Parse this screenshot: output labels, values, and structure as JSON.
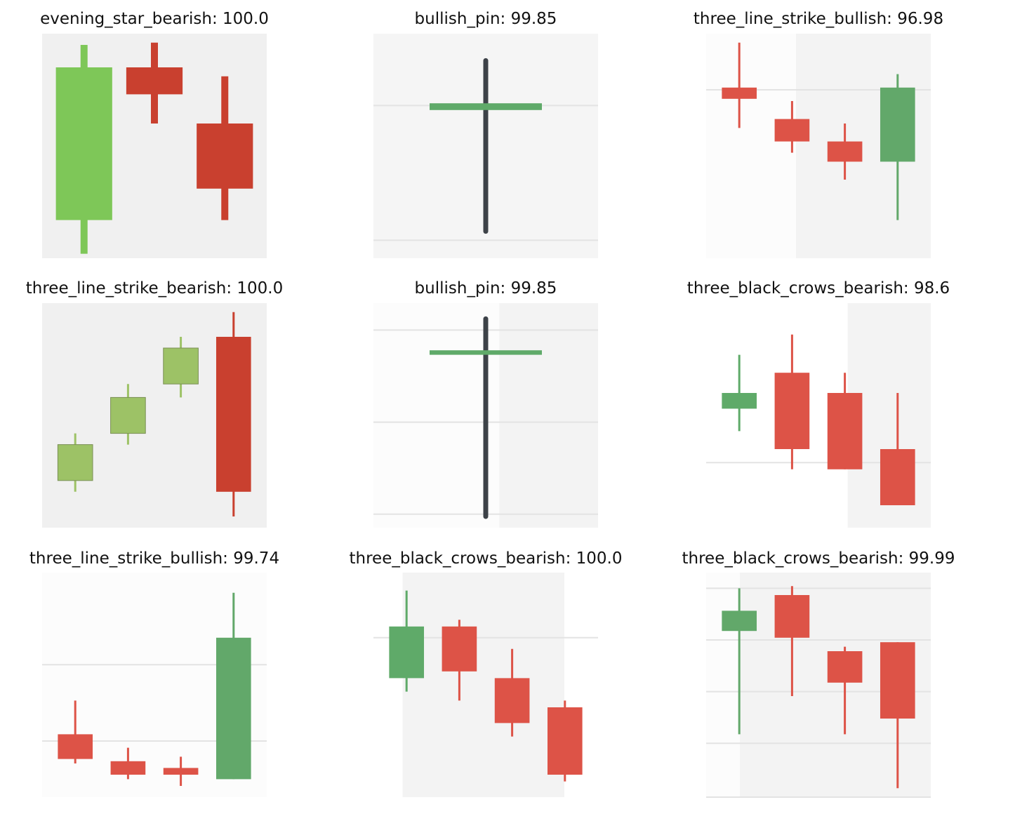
{
  "chart_data": [
    {
      "type": "candlestick",
      "title": "evening_star_bearish: 100.0",
      "background": [
        "#f0f0f0"
      ],
      "gridlines": [],
      "candles": [
        {
          "o": 0.85,
          "h": 0.95,
          "l": 0.02,
          "c": 0.17,
          "color": "#7ec758"
        },
        {
          "o": 0.73,
          "h": 0.96,
          "l": 0.6,
          "c": 0.85,
          "color": "#c9402f"
        },
        {
          "o": 0.6,
          "h": 0.81,
          "l": 0.17,
          "c": 0.31,
          "color": "#c9402f"
        }
      ]
    },
    {
      "type": "candlestick",
      "title": "bullish_pin: 99.85",
      "background": [
        "#f5f5f5"
      ],
      "gridlines": [
        0.68,
        0.08
      ],
      "candles": [
        {
          "o": 0.66,
          "h": 0.88,
          "l": 0.12,
          "c": 0.69,
          "color": "#5faa69",
          "wick": "#3d4248"
        }
      ]
    },
    {
      "type": "candlestick",
      "title": "three_line_strike_bullish: 96.98",
      "background": [
        "#fcfcfc",
        "#f3f3f3"
      ],
      "gridlines": [
        0.75
      ],
      "candles": [
        {
          "o": 0.76,
          "h": 0.96,
          "l": 0.58,
          "c": 0.71,
          "color": "#dd5347"
        },
        {
          "o": 0.62,
          "h": 0.7,
          "l": 0.47,
          "c": 0.52,
          "color": "#dd5347"
        },
        {
          "o": 0.52,
          "h": 0.6,
          "l": 0.35,
          "c": 0.43,
          "color": "#dd5347"
        },
        {
          "o": 0.43,
          "h": 0.82,
          "l": 0.17,
          "c": 0.76,
          "color": "#62a86a"
        }
      ]
    },
    {
      "type": "candlestick",
      "title": "three_line_strike_bearish: 100.0",
      "background": [
        "#f0f0f0"
      ],
      "gridlines": [],
      "candles": [
        {
          "o": 0.21,
          "h": 0.42,
          "l": 0.16,
          "c": 0.37,
          "color": "#9dc266"
        },
        {
          "o": 0.42,
          "h": 0.64,
          "l": 0.37,
          "c": 0.58,
          "color": "#9dc266"
        },
        {
          "o": 0.64,
          "h": 0.85,
          "l": 0.58,
          "c": 0.8,
          "color": "#9dc266"
        },
        {
          "o": 0.85,
          "h": 0.96,
          "l": 0.05,
          "c": 0.16,
          "color": "#c9402f"
        }
      ]
    },
    {
      "type": "candlestick",
      "title": "bullish_pin: 99.85",
      "background": [
        "#fcfcfc",
        "#f3f3f3"
      ],
      "gridlines": [
        0.88,
        0.47,
        0.06
      ],
      "candles": [
        {
          "o": 0.77,
          "h": 0.93,
          "l": 0.05,
          "c": 0.79,
          "color": "#5faa69",
          "wick": "#3d4248"
        }
      ]
    },
    {
      "type": "candlestick",
      "title": "three_black_crows_bearish: 98.6",
      "background": [
        "#ffffff",
        "#f3f3f3"
      ],
      "gridlines": [
        0.29
      ],
      "candles": [
        {
          "o": 0.53,
          "h": 0.77,
          "l": 0.43,
          "c": 0.6,
          "color": "#5faa69"
        },
        {
          "o": 0.69,
          "h": 0.86,
          "l": 0.26,
          "c": 0.35,
          "color": "#dd5347"
        },
        {
          "o": 0.6,
          "h": 0.69,
          "l": 0.26,
          "c": 0.26,
          "color": "#dd5347"
        },
        {
          "o": 0.35,
          "h": 0.6,
          "l": 0.1,
          "c": 0.1,
          "color": "#dd5347"
        }
      ]
    },
    {
      "type": "candlestick",
      "title": "three_line_strike_bullish: 99.74",
      "background": [
        "#fcfcfc"
      ],
      "gridlines": [
        0.59,
        0.25
      ],
      "candles": [
        {
          "o": 0.28,
          "h": 0.43,
          "l": 0.15,
          "c": 0.17,
          "color": "#dd5347"
        },
        {
          "o": 0.16,
          "h": 0.22,
          "l": 0.08,
          "c": 0.1,
          "color": "#dd5347"
        },
        {
          "o": 0.13,
          "h": 0.18,
          "l": 0.05,
          "c": 0.1,
          "color": "#dd5347"
        },
        {
          "o": 0.08,
          "h": 0.91,
          "l": 0.08,
          "c": 0.71,
          "color": "#62a86a"
        }
      ]
    },
    {
      "type": "candlestick",
      "title": "three_black_crows_bearish: 100.0",
      "background": [
        "#ffffff",
        "#f3f3f3",
        "#ffffff"
      ],
      "gridlines": [
        0.71
      ],
      "candles": [
        {
          "o": 0.53,
          "h": 0.92,
          "l": 0.47,
          "c": 0.76,
          "color": "#5faa69"
        },
        {
          "o": 0.76,
          "h": 0.79,
          "l": 0.43,
          "c": 0.56,
          "color": "#dd5347"
        },
        {
          "o": 0.53,
          "h": 0.66,
          "l": 0.27,
          "c": 0.33,
          "color": "#dd5347"
        },
        {
          "o": 0.4,
          "h": 0.43,
          "l": 0.07,
          "c": 0.1,
          "color": "#dd5347"
        }
      ]
    },
    {
      "type": "candlestick",
      "title": "three_black_crows_bearish: 99.99",
      "background": [
        "#fcfcfc",
        "#f3f3f3"
      ],
      "gridlines": [
        0.93,
        0.7,
        0.47,
        0.24,
        0.0
      ],
      "candles": [
        {
          "o": 0.74,
          "h": 0.93,
          "l": 0.28,
          "c": 0.83,
          "color": "#62a86a"
        },
        {
          "o": 0.9,
          "h": 0.94,
          "l": 0.45,
          "c": 0.71,
          "color": "#dd5347"
        },
        {
          "o": 0.65,
          "h": 0.67,
          "l": 0.28,
          "c": 0.51,
          "color": "#dd5347"
        },
        {
          "o": 0.69,
          "h": 0.69,
          "l": 0.04,
          "c": 0.35,
          "color": "#dd5347"
        }
      ]
    }
  ]
}
